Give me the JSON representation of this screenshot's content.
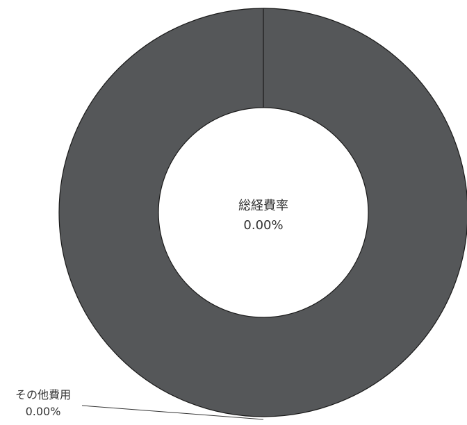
{
  "chart_data": {
    "type": "pie",
    "style": "donut",
    "center_label": {
      "title": "総経費率",
      "value": "0.00%"
    },
    "slices": [
      {
        "name": "その他費用",
        "value_text": "0.00%",
        "value": 0,
        "color": "#555759"
      },
      {
        "name": "",
        "value_text": "",
        "value": 100,
        "color": "#555759"
      }
    ],
    "colors": {
      "slice": "#555759",
      "stroke": "#1a1a1a",
      "background": "#ffffff"
    },
    "legend": "none"
  }
}
